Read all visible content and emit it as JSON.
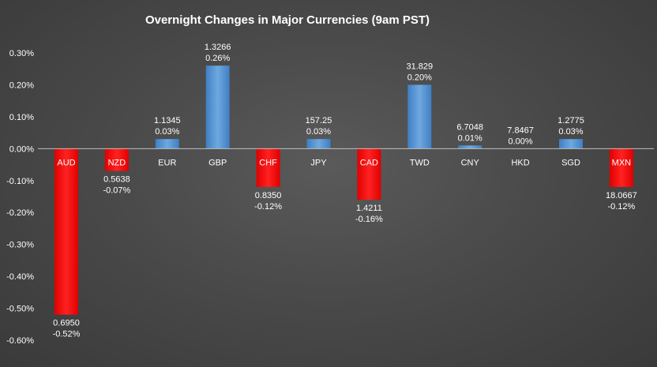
{
  "chart_data": {
    "type": "bar",
    "title": "Overnight Changes in Major Currencies (9am PST)",
    "xlabel": "",
    "ylabel": "",
    "ylim": [
      -0.6,
      0.3
    ],
    "yticks": [
      "0.30%",
      "0.20%",
      "0.10%",
      "0.00%",
      "-0.10%",
      "-0.20%",
      "-0.30%",
      "-0.40%",
      "-0.50%",
      "-0.60%"
    ],
    "ytick_values": [
      0.3,
      0.2,
      0.1,
      0.0,
      -0.1,
      -0.2,
      -0.3,
      -0.4,
      -0.5,
      -0.6
    ],
    "categories": [
      "AUD",
      "NZD",
      "EUR",
      "GBP",
      "CHF",
      "JPY",
      "CAD",
      "TWD",
      "CNY",
      "HKD",
      "SGD",
      "MXN"
    ],
    "values": [
      -0.52,
      -0.07,
      0.03,
      0.26,
      -0.12,
      0.03,
      -0.16,
      0.2,
      0.01,
      0.0,
      0.03,
      -0.12
    ],
    "rates": [
      "0.6950",
      "0.5638",
      "1.1345",
      "1.3266",
      "0.8350",
      "157.25",
      "1.4211",
      "31.829",
      "6.7048",
      "7.8467",
      "1.2775",
      "18.0667"
    ],
    "value_labels": [
      "-0.52%",
      "-0.07%",
      "0.03%",
      "0.26%",
      "-0.12%",
      "0.03%",
      "-0.16%",
      "0.20%",
      "0.01%",
      "0.00%",
      "0.03%",
      "-0.12%"
    ],
    "colors": {
      "positive": "#5b9bd5",
      "negative": "#ff0000",
      "zero_line": "#bfbfbf"
    },
    "grid": false,
    "legend": "none"
  }
}
